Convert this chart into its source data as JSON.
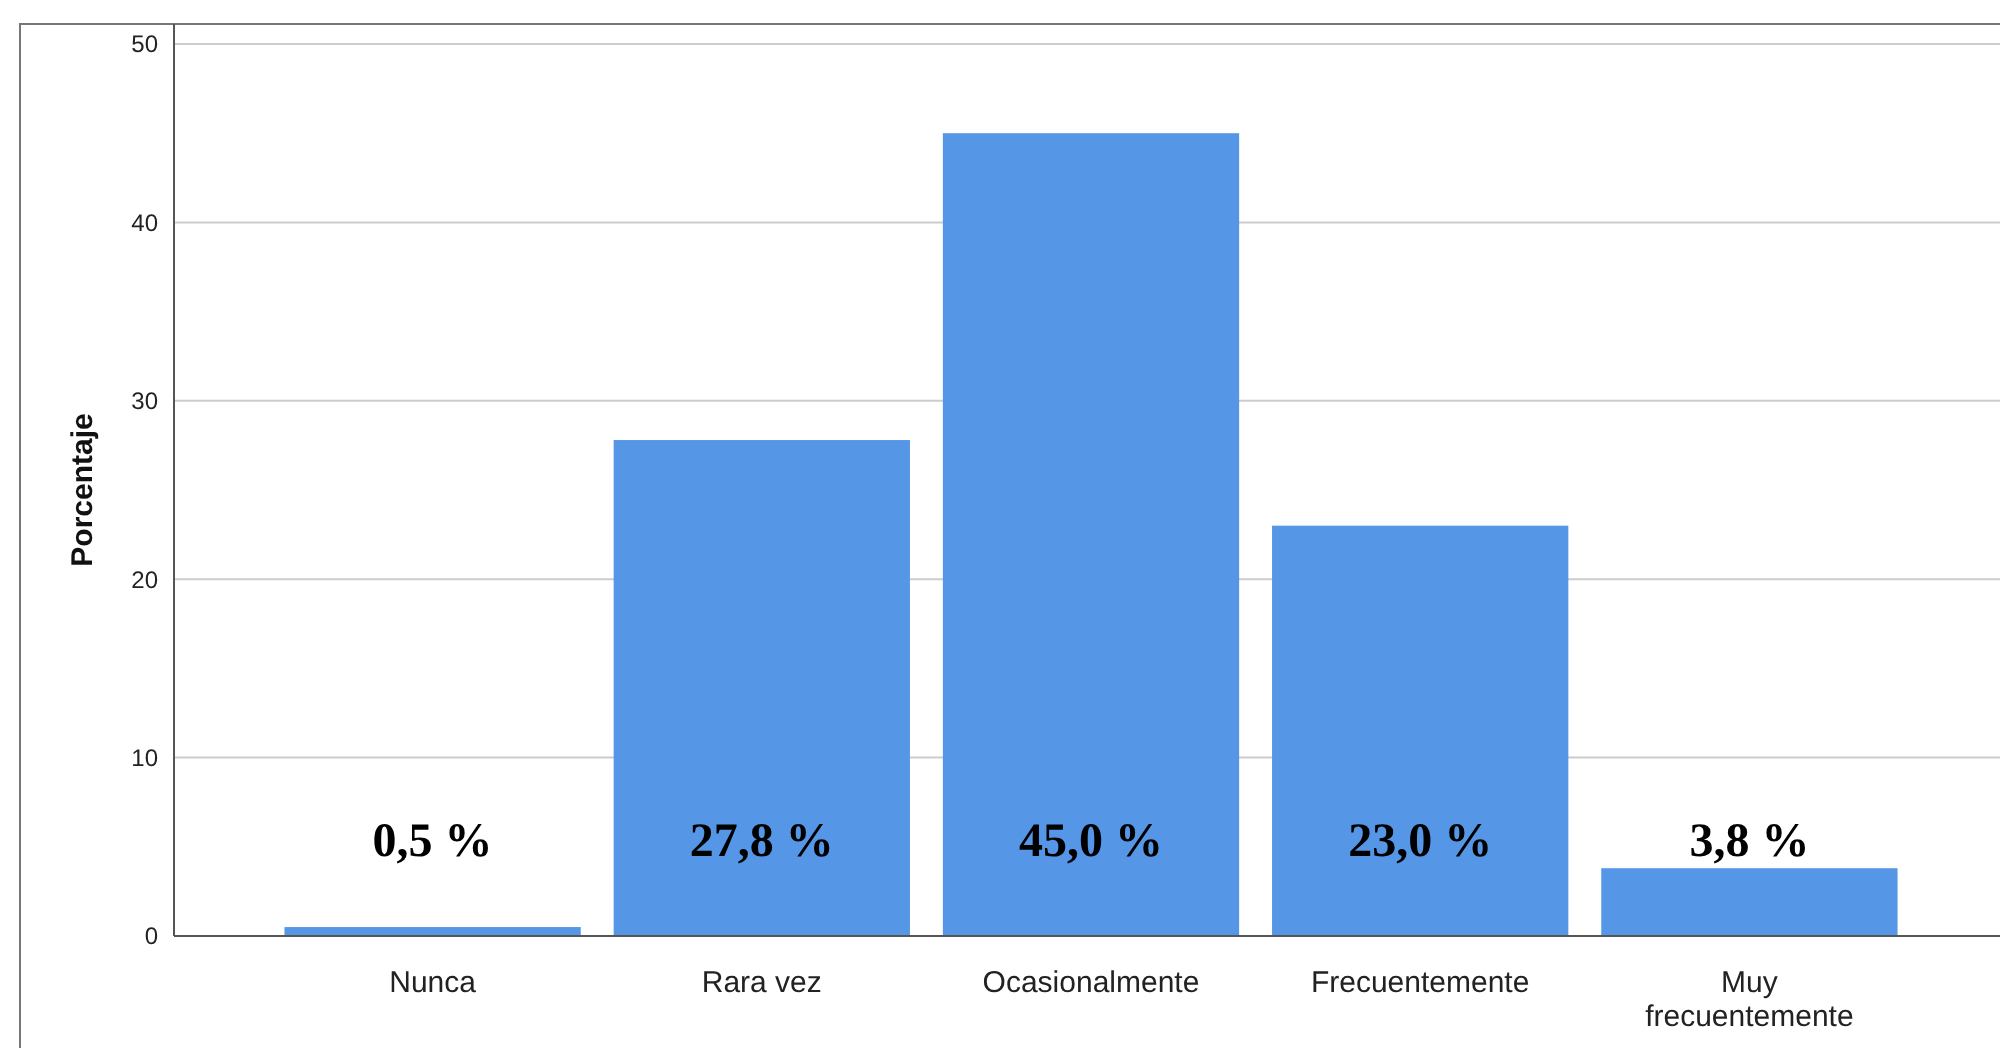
{
  "chart_data": {
    "type": "bar",
    "ylabel": "Porcentaje",
    "categories": [
      "Nunca",
      "Rara vez",
      "Ocasionalmente",
      "Frecuentemente",
      "Muy frecuentemente"
    ],
    "values": [
      0.5,
      27.8,
      45.0,
      23.0,
      3.8
    ],
    "value_labels": [
      "0,5 %",
      "27,8 %",
      "45,0 %",
      "23,0 %",
      "3,8 %"
    ],
    "color": "#5596e6",
    "ylim": [
      0,
      50
    ],
    "yticks": [
      0,
      10,
      20,
      30,
      40,
      50
    ],
    "grid": "y"
  }
}
